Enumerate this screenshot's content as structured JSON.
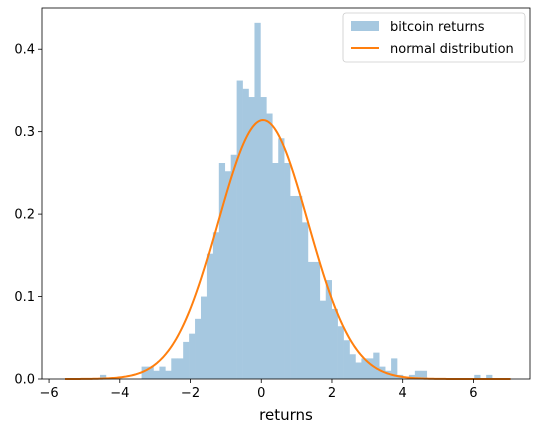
{
  "chart_data": {
    "type": "bar",
    "title": "",
    "xlabel": "returns",
    "ylabel": "",
    "xlim": [
      -6.2,
      7.6
    ],
    "ylim": [
      0,
      0.45
    ],
    "xticks": [
      -6,
      -4,
      -2,
      0,
      2,
      4,
      6
    ],
    "yticks": [
      0.0,
      0.1,
      0.2,
      0.3,
      0.4
    ],
    "grid": false,
    "legend": {
      "placement": "top-right",
      "entries": [
        {
          "label": "bitcoin returns",
          "kind": "patch",
          "color": "#a6c8e0"
        },
        {
          "label": "normal distribution",
          "kind": "line",
          "color": "#ff7f0e"
        }
      ]
    },
    "histogram": {
      "name": "bitcoin returns",
      "color": "#a6c8e0",
      "bin_start": -5.4,
      "bin_width": 0.168,
      "values": [
        0,
        0,
        0,
        0,
        0,
        0.005,
        0,
        0,
        0,
        0,
        0,
        0,
        0.015,
        0.015,
        0.01,
        0.015,
        0.01,
        0.025,
        0.025,
        0.045,
        0.055,
        0.073,
        0.1,
        0.152,
        0.178,
        0.262,
        0.252,
        0.272,
        0.362,
        0.352,
        0.342,
        0.432,
        0.342,
        0.322,
        0.262,
        0.292,
        0.262,
        0.222,
        0.222,
        0.19,
        0.142,
        0.142,
        0.095,
        0.12,
        0.085,
        0.064,
        0.047,
        0.03,
        0.02,
        0.025,
        0.025,
        0.032,
        0.015,
        0.01,
        0.025,
        0.005,
        0,
        0.005,
        0.01,
        0.01,
        0,
        0,
        0,
        0,
        0,
        0,
        0,
        0,
        0.005,
        0,
        0.005
      ]
    },
    "normal_curve": {
      "name": "normal distribution",
      "color": "#ff7f0e",
      "mean": 0.05,
      "std": 1.27,
      "x_range": [
        -5.55,
        7.05
      ]
    }
  }
}
